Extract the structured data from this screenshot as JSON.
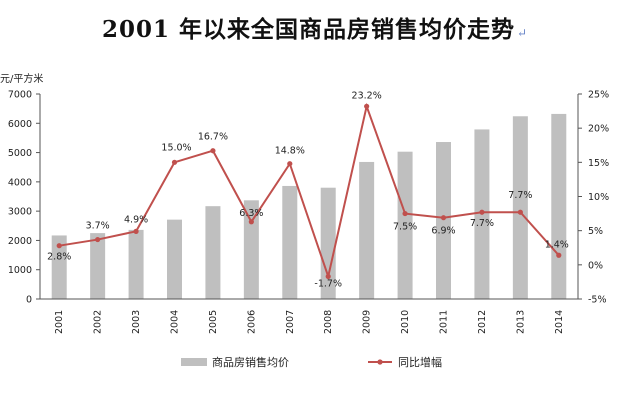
{
  "title": "2001 年以来全国商品房销售均价走势",
  "title_mark": "↵",
  "chart_data": {
    "type": "bar",
    "categories": [
      "2001",
      "2002",
      "2003",
      "2004",
      "2005",
      "2006",
      "2007",
      "2008",
      "2009",
      "2010",
      "2011",
      "2012",
      "2013",
      "2014"
    ],
    "series": [
      {
        "name": "商品房销售均价",
        "type": "bar",
        "axis": "left",
        "color": "#bfbfbf",
        "values": [
          2170,
          2250,
          2360,
          2710,
          3170,
          3370,
          3860,
          3800,
          4680,
          5030,
          5360,
          5790,
          6240,
          6320
        ]
      },
      {
        "name": "同比增幅",
        "type": "line",
        "axis": "right",
        "color": "#c0504d",
        "values": [
          2.8,
          3.7,
          4.9,
          15.0,
          16.7,
          6.3,
          14.8,
          -1.7,
          23.2,
          7.5,
          6.9,
          7.7,
          7.7,
          1.4
        ],
        "labels": [
          "2.8%",
          "3.7%",
          "4.9%",
          "15.0%",
          "16.7%",
          "6.3%",
          "14.8%",
          "-1.7%",
          "23.2%",
          "7.5%",
          "6.9%",
          "7.7%",
          "7.7%",
          "1.4%"
        ]
      }
    ],
    "ylabel": "元/平方米",
    "ylim": [
      0,
      7000
    ],
    "yticks": [
      "0",
      "1000",
      "2000",
      "3000",
      "4000",
      "5000",
      "6000",
      "7000"
    ],
    "y2lim": [
      -5,
      25
    ],
    "y2ticks": [
      "-5%",
      "0%",
      "5%",
      "10%",
      "15%",
      "20%",
      "25%"
    ],
    "grid": false,
    "legend_position": "bottom"
  }
}
